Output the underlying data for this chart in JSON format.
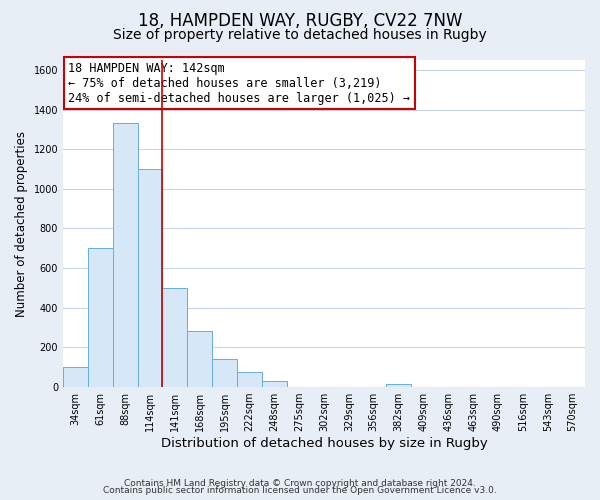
{
  "title": "18, HAMPDEN WAY, RUGBY, CV22 7NW",
  "subtitle": "Size of property relative to detached houses in Rugby",
  "xlabel": "Distribution of detached houses by size in Rugby",
  "ylabel": "Number of detached properties",
  "bar_labels": [
    "34sqm",
    "61sqm",
    "88sqm",
    "114sqm",
    "141sqm",
    "168sqm",
    "195sqm",
    "222sqm",
    "248sqm",
    "275sqm",
    "302sqm",
    "329sqm",
    "356sqm",
    "382sqm",
    "409sqm",
    "436sqm",
    "463sqm",
    "490sqm",
    "516sqm",
    "543sqm",
    "570sqm"
  ],
  "bar_values": [
    100,
    700,
    1330,
    1100,
    500,
    285,
    140,
    75,
    30,
    0,
    0,
    0,
    0,
    15,
    0,
    0,
    0,
    0,
    0,
    0,
    0
  ],
  "bar_color": "#d6e8f7",
  "bar_edge_color": "#6aaed6",
  "ylim": [
    0,
    1650
  ],
  "yticks": [
    0,
    200,
    400,
    600,
    800,
    1000,
    1200,
    1400,
    1600
  ],
  "property_line_color": "#cc0000",
  "annotation_box_text": "18 HAMPDEN WAY: 142sqm\n← 75% of detached houses are smaller (3,219)\n24% of semi-detached houses are larger (1,025) →",
  "annotation_box_facecolor": "white",
  "annotation_box_edgecolor": "#cc0000",
  "footer_line1": "Contains HM Land Registry data © Crown copyright and database right 2024.",
  "footer_line2": "Contains public sector information licensed under the Open Government Licence v3.0.",
  "fig_background_color": "#e8eef5",
  "plot_background_color": "white",
  "grid_color": "#c8d4e8",
  "title_fontsize": 12,
  "subtitle_fontsize": 10,
  "xlabel_fontsize": 9.5,
  "ylabel_fontsize": 8.5,
  "tick_fontsize": 7,
  "footer_fontsize": 6.5,
  "annotation_fontsize": 8.5
}
